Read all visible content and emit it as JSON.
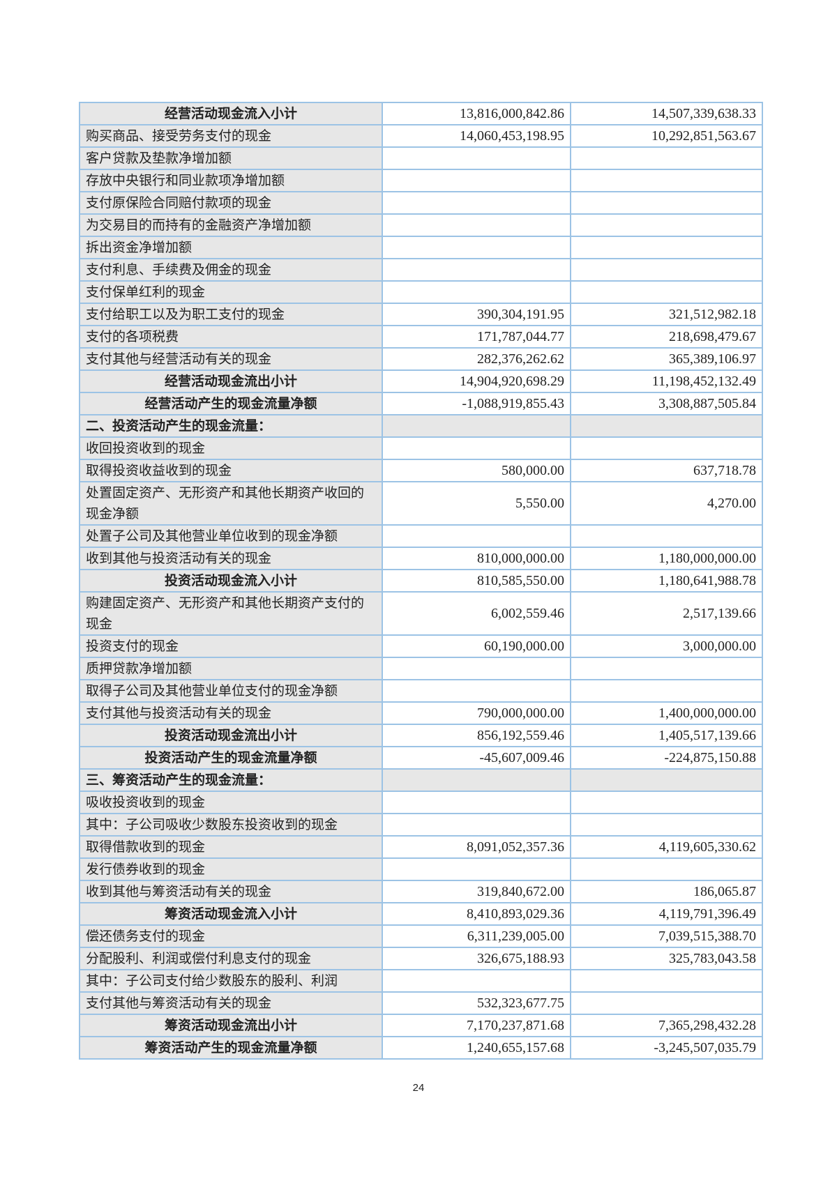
{
  "table": {
    "rows": [
      {
        "label": "经营活动现金流入小计",
        "current": "13,816,000,842.86",
        "prior": "14,507,339,638.33",
        "type": "subtotal"
      },
      {
        "label": "购买商品、接受劳务支付的现金",
        "current": "14,060,453,198.95",
        "prior": "10,292,851,563.67",
        "type": "item"
      },
      {
        "label": "客户贷款及垫款净增加额",
        "current": "",
        "prior": "",
        "type": "item"
      },
      {
        "label": "存放中央银行和同业款项净增加额",
        "current": "",
        "prior": "",
        "type": "item"
      },
      {
        "label": "支付原保险合同赔付款项的现金",
        "current": "",
        "prior": "",
        "type": "item"
      },
      {
        "label": "为交易目的而持有的金融资产净增加额",
        "current": "",
        "prior": "",
        "type": "item"
      },
      {
        "label": "拆出资金净增加额",
        "current": "",
        "prior": "",
        "type": "item"
      },
      {
        "label": "支付利息、手续费及佣金的现金",
        "current": "",
        "prior": "",
        "type": "item"
      },
      {
        "label": "支付保单红利的现金",
        "current": "",
        "prior": "",
        "type": "item"
      },
      {
        "label": "支付给职工以及为职工支付的现金",
        "current": "390,304,191.95",
        "prior": "321,512,982.18",
        "type": "item"
      },
      {
        "label": "支付的各项税费",
        "current": "171,787,044.77",
        "prior": "218,698,479.67",
        "type": "item"
      },
      {
        "label": "支付其他与经营活动有关的现金",
        "current": "282,376,262.62",
        "prior": "365,389,106.97",
        "type": "item"
      },
      {
        "label": "经营活动现金流出小计",
        "current": "14,904,920,698.29",
        "prior": "11,198,452,132.49",
        "type": "subtotal"
      },
      {
        "label": "经营活动产生的现金流量净额",
        "current": "-1,088,919,855.43",
        "prior": "3,308,887,505.84",
        "type": "subtotal"
      },
      {
        "label": "二、投资活动产生的现金流量：",
        "current": "",
        "prior": "",
        "type": "section"
      },
      {
        "label": "收回投资收到的现金",
        "current": "",
        "prior": "",
        "type": "item"
      },
      {
        "label": "取得投资收益收到的现金",
        "current": "580,000.00",
        "prior": "637,718.78",
        "type": "item"
      },
      {
        "label": "处置固定资产、无形资产和其他长期资产收回的现金净额",
        "current": "5,550.00",
        "prior": "4,270.00",
        "type": "double"
      },
      {
        "label": "处置子公司及其他营业单位收到的现金净额",
        "current": "",
        "prior": "",
        "type": "item"
      },
      {
        "label": "收到其他与投资活动有关的现金",
        "current": "810,000,000.00",
        "prior": "1,180,000,000.00",
        "type": "item"
      },
      {
        "label": "投资活动现金流入小计",
        "current": "810,585,550.00",
        "prior": "1,180,641,988.78",
        "type": "subtotal"
      },
      {
        "label": "购建固定资产、无形资产和其他长期资产支付的现金",
        "current": "6,002,559.46",
        "prior": "2,517,139.66",
        "type": "double"
      },
      {
        "label": "投资支付的现金",
        "current": "60,190,000.00",
        "prior": "3,000,000.00",
        "type": "item"
      },
      {
        "label": "质押贷款净增加额",
        "current": "",
        "prior": "",
        "type": "item"
      },
      {
        "label": "取得子公司及其他营业单位支付的现金净额",
        "current": "",
        "prior": "",
        "type": "item"
      },
      {
        "label": "支付其他与投资活动有关的现金",
        "current": "790,000,000.00",
        "prior": "1,400,000,000.00",
        "type": "item"
      },
      {
        "label": "投资活动现金流出小计",
        "current": "856,192,559.46",
        "prior": "1,405,517,139.66",
        "type": "subtotal"
      },
      {
        "label": "投资活动产生的现金流量净额",
        "current": "-45,607,009.46",
        "prior": "-224,875,150.88",
        "type": "subtotal"
      },
      {
        "label": "三、筹资活动产生的现金流量：",
        "current": "",
        "prior": "",
        "type": "section"
      },
      {
        "label": "吸收投资收到的现金",
        "current": "",
        "prior": "",
        "type": "item"
      },
      {
        "label": "其中：子公司吸收少数股东投资收到的现金",
        "current": "",
        "prior": "",
        "type": "item"
      },
      {
        "label": "取得借款收到的现金",
        "current": "8,091,052,357.36",
        "prior": "4,119,605,330.62",
        "type": "item"
      },
      {
        "label": "发行债券收到的现金",
        "current": "",
        "prior": "",
        "type": "item"
      },
      {
        "label": "收到其他与筹资活动有关的现金",
        "current": "319,840,672.00",
        "prior": "186,065.87",
        "type": "item"
      },
      {
        "label": "筹资活动现金流入小计",
        "current": "8,410,893,029.36",
        "prior": "4,119,791,396.49",
        "type": "subtotal"
      },
      {
        "label": "偿还债务支付的现金",
        "current": "6,311,239,005.00",
        "prior": "7,039,515,388.70",
        "type": "item"
      },
      {
        "label": "分配股利、利润或偿付利息支付的现金",
        "current": "326,675,188.93",
        "prior": "325,783,043.58",
        "type": "item"
      },
      {
        "label": "其中：子公司支付给少数股东的股利、利润",
        "current": "",
        "prior": "",
        "type": "item"
      },
      {
        "label": "支付其他与筹资活动有关的现金",
        "current": "532,323,677.75",
        "prior": "",
        "type": "item"
      },
      {
        "label": "筹资活动现金流出小计",
        "current": "7,170,237,871.68",
        "prior": "7,365,298,432.28",
        "type": "subtotal"
      },
      {
        "label": "筹资活动产生的现金流量净额",
        "current": "1,240,655,157.68",
        "prior": "-3,245,507,035.79",
        "type": "subtotal"
      }
    ]
  },
  "page_number": "24",
  "colors": {
    "border": "#9cc3e5",
    "label_bg": "#e7e7e7"
  }
}
